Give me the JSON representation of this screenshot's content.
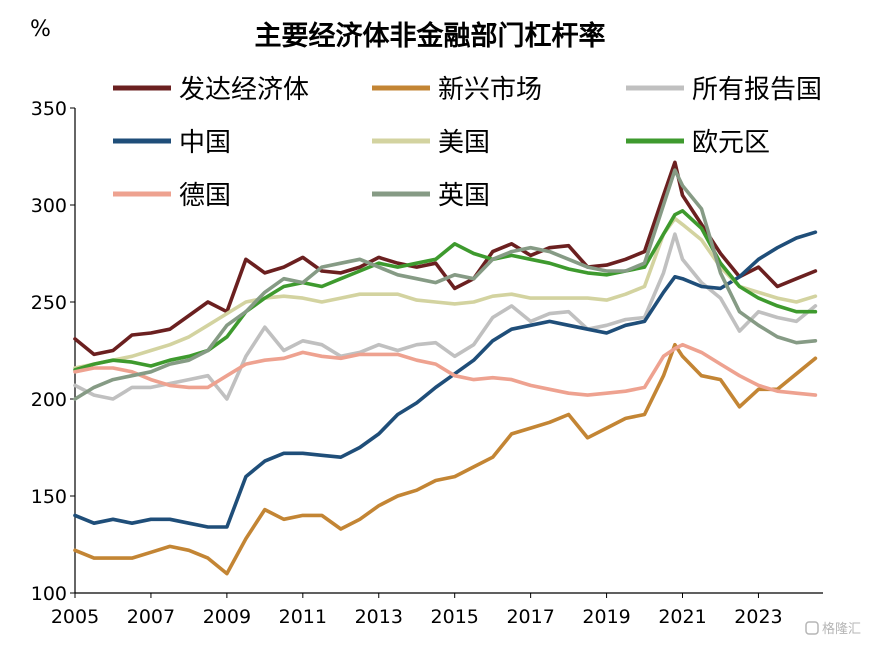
{
  "chart_data": {
    "type": "line",
    "title": "主要经济体非金融部门杠杆率",
    "unit": "%",
    "xlabel": "",
    "ylabel": "",
    "ylim": [
      100,
      350
    ],
    "yticks": [
      100,
      150,
      200,
      250,
      300,
      350
    ],
    "xlim": [
      2005,
      2024.7
    ],
    "xticks": [
      2005,
      2007,
      2009,
      2011,
      2013,
      2015,
      2017,
      2019,
      2021,
      2023
    ],
    "grid": false,
    "legend_position": "top",
    "series": [
      {
        "name": "发达经济体",
        "color": "#6b2020",
        "x": [
          2005,
          2005.5,
          2006,
          2006.5,
          2007,
          2007.5,
          2008,
          2008.5,
          2009,
          2009.5,
          2010,
          2010.5,
          2011,
          2011.5,
          2012,
          2012.5,
          2013,
          2013.5,
          2014,
          2014.5,
          2015,
          2015.5,
          2016,
          2016.5,
          2017,
          2017.5,
          2018,
          2018.5,
          2019,
          2019.5,
          2020,
          2020.5,
          2020.8,
          2021,
          2021.5,
          2022,
          2022.5,
          2023,
          2023.5,
          2024,
          2024.5
        ],
        "y": [
          231,
          223,
          225,
          233,
          234,
          236,
          243,
          250,
          245,
          272,
          265,
          268,
          273,
          266,
          265,
          268,
          273,
          270,
          268,
          270,
          257,
          262,
          276,
          280,
          274,
          278,
          279,
          268,
          269,
          272,
          276,
          305,
          322,
          305,
          290,
          275,
          263,
          268,
          258,
          262,
          266
        ]
      },
      {
        "name": "新兴市场",
        "color": "#c38534",
        "x": [
          2005,
          2005.5,
          2006,
          2006.5,
          2007,
          2007.5,
          2008,
          2008.5,
          2009,
          2009.5,
          2010,
          2010.5,
          2011,
          2011.5,
          2012,
          2012.5,
          2013,
          2013.5,
          2014,
          2014.5,
          2015,
          2015.5,
          2016,
          2016.5,
          2017,
          2017.5,
          2018,
          2018.5,
          2019,
          2019.5,
          2020,
          2020.5,
          2020.8,
          2021,
          2021.5,
          2022,
          2022.5,
          2023,
          2023.5,
          2024,
          2024.5
        ],
        "y": [
          122,
          118,
          118,
          118,
          121,
          124,
          122,
          118,
          110,
          128,
          143,
          138,
          140,
          140,
          133,
          138,
          145,
          150,
          153,
          158,
          160,
          165,
          170,
          182,
          185,
          188,
          192,
          180,
          185,
          190,
          192,
          212,
          228,
          222,
          212,
          210,
          196,
          205,
          205,
          213,
          221
        ]
      },
      {
        "name": "所有报告国",
        "color": "#c0c0c0",
        "x": [
          2005,
          2005.5,
          2006,
          2006.5,
          2007,
          2007.5,
          2008,
          2008.5,
          2009,
          2009.5,
          2010,
          2010.5,
          2011,
          2011.5,
          2012,
          2012.5,
          2013,
          2013.5,
          2014,
          2014.5,
          2015,
          2015.5,
          2016,
          2016.5,
          2017,
          2017.5,
          2018,
          2018.5,
          2019,
          2019.5,
          2020,
          2020.5,
          2020.8,
          2021,
          2021.5,
          2022,
          2022.5,
          2023,
          2023.5,
          2024,
          2024.5
        ],
        "y": [
          207,
          202,
          200,
          206,
          206,
          208,
          210,
          212,
          200,
          222,
          237,
          225,
          230,
          228,
          222,
          224,
          228,
          225,
          228,
          229,
          222,
          228,
          242,
          248,
          240,
          244,
          245,
          236,
          238,
          241,
          242,
          265,
          285,
          272,
          260,
          252,
          235,
          245,
          242,
          240,
          248
        ]
      },
      {
        "name": "中国",
        "color": "#1f4e79",
        "x": [
          2005,
          2005.5,
          2006,
          2006.5,
          2007,
          2007.5,
          2008,
          2008.5,
          2009,
          2009.5,
          2010,
          2010.5,
          2011,
          2011.5,
          2012,
          2012.5,
          2013,
          2013.5,
          2014,
          2014.5,
          2015,
          2015.5,
          2016,
          2016.5,
          2017,
          2017.5,
          2018,
          2018.5,
          2019,
          2019.5,
          2020,
          2020.5,
          2020.8,
          2021,
          2021.5,
          2022,
          2022.5,
          2023,
          2023.5,
          2024,
          2024.5
        ],
        "y": [
          140,
          136,
          138,
          136,
          138,
          138,
          136,
          134,
          134,
          160,
          168,
          172,
          172,
          171,
          170,
          175,
          182,
          192,
          198,
          206,
          213,
          220,
          230,
          236,
          238,
          240,
          238,
          236,
          234,
          238,
          240,
          255,
          263,
          262,
          258,
          257,
          263,
          272,
          278,
          283,
          286
        ]
      },
      {
        "name": "美国",
        "color": "#d3d3a0",
        "x": [
          2005,
          2005.5,
          2006,
          2006.5,
          2007,
          2007.5,
          2008,
          2008.5,
          2009,
          2009.5,
          2010,
          2010.5,
          2011,
          2011.5,
          2012,
          2012.5,
          2013,
          2013.5,
          2014,
          2014.5,
          2015,
          2015.5,
          2016,
          2016.5,
          2017,
          2017.5,
          2018,
          2018.5,
          2019,
          2019.5,
          2020,
          2020.5,
          2020.8,
          2021,
          2021.5,
          2022,
          2022.5,
          2023,
          2023.5,
          2024,
          2024.5
        ],
        "y": [
          216,
          218,
          220,
          222,
          225,
          228,
          232,
          238,
          244,
          250,
          252,
          253,
          252,
          250,
          252,
          254,
          254,
          254,
          251,
          250,
          249,
          250,
          253,
          254,
          252,
          252,
          252,
          252,
          251,
          254,
          258,
          285,
          293,
          290,
          282,
          268,
          258,
          255,
          252,
          250,
          253
        ]
      },
      {
        "name": "欧元区",
        "color": "#3e9a2e",
        "x": [
          2005,
          2005.5,
          2006,
          2006.5,
          2007,
          2007.5,
          2008,
          2008.5,
          2009,
          2009.5,
          2010,
          2010.5,
          2011,
          2011.5,
          2012,
          2012.5,
          2013,
          2013.5,
          2014,
          2014.5,
          2015,
          2015.5,
          2016,
          2016.5,
          2017,
          2017.5,
          2018,
          2018.5,
          2019,
          2019.5,
          2020,
          2020.5,
          2020.8,
          2021,
          2021.5,
          2022,
          2022.5,
          2023,
          2023.5,
          2024,
          2024.5
        ],
        "y": [
          215,
          218,
          220,
          219,
          217,
          220,
          222,
          225,
          232,
          245,
          252,
          258,
          260,
          258,
          262,
          266,
          270,
          268,
          270,
          272,
          280,
          275,
          272,
          274,
          272,
          270,
          267,
          265,
          264,
          266,
          268,
          285,
          295,
          297,
          288,
          270,
          258,
          252,
          248,
          245,
          245
        ]
      },
      {
        "name": "德国",
        "color": "#eea290",
        "x": [
          2005,
          2005.5,
          2006,
          2006.5,
          2007,
          2007.5,
          2008,
          2008.5,
          2009,
          2009.5,
          2010,
          2010.5,
          2011,
          2011.5,
          2012,
          2012.5,
          2013,
          2013.5,
          2014,
          2014.5,
          2015,
          2015.5,
          2016,
          2016.5,
          2017,
          2017.5,
          2018,
          2018.5,
          2019,
          2019.5,
          2020,
          2020.5,
          2020.8,
          2021,
          2021.5,
          2022,
          2022.5,
          2023,
          2023.5,
          2024,
          2024.5
        ],
        "y": [
          214,
          216,
          216,
          214,
          210,
          207,
          206,
          206,
          212,
          218,
          220,
          221,
          224,
          222,
          221,
          223,
          223,
          223,
          220,
          218,
          212,
          210,
          211,
          210,
          207,
          205,
          203,
          202,
          203,
          204,
          206,
          222,
          226,
          228,
          224,
          218,
          212,
          207,
          204,
          203,
          202
        ]
      },
      {
        "name": "英国",
        "color": "#869b85",
        "x": [
          2005,
          2005.5,
          2006,
          2006.5,
          2007,
          2007.5,
          2008,
          2008.5,
          2009,
          2009.5,
          2010,
          2010.5,
          2011,
          2011.5,
          2012,
          2012.5,
          2013,
          2013.5,
          2014,
          2014.5,
          2015,
          2015.5,
          2016,
          2016.5,
          2017,
          2017.5,
          2018,
          2018.5,
          2019,
          2019.5,
          2020,
          2020.5,
          2020.8,
          2021,
          2021.5,
          2022,
          2022.5,
          2023,
          2023.5,
          2024,
          2024.5
        ],
        "y": [
          200,
          206,
          210,
          212,
          214,
          218,
          220,
          225,
          238,
          245,
          255,
          262,
          260,
          268,
          270,
          272,
          268,
          264,
          262,
          260,
          264,
          262,
          272,
          276,
          278,
          276,
          272,
          268,
          266,
          266,
          270,
          300,
          318,
          310,
          298,
          265,
          245,
          238,
          232,
          229,
          230
        ]
      }
    ]
  },
  "watermark": "格隆汇"
}
